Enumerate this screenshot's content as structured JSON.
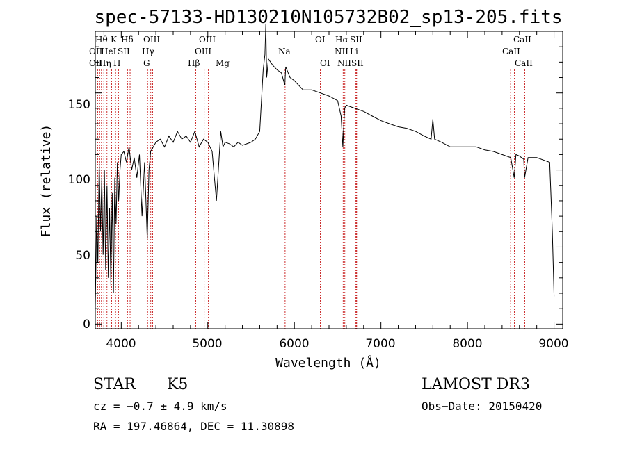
{
  "chart_data": {
    "type": "line",
    "title": "spec-57133-HD130210N105732B02_sp13-205.fits",
    "xlabel": "Wavelength (Å)",
    "ylabel": "Flux (relative)",
    "xlim": [
      3700,
      9100
    ],
    "ylim": [
      -3,
      190
    ],
    "xticks": [
      "4000",
      "5000",
      "6000",
      "7000",
      "8000",
      "9000"
    ],
    "yticks": [
      "0",
      "50",
      "100",
      "150"
    ],
    "grid": false,
    "series": [
      {
        "x": [
          3700,
          3715,
          3730,
          3745,
          3760,
          3775,
          3790,
          3805,
          3820,
          3835,
          3850,
          3865,
          3880,
          3895,
          3910,
          3925,
          3940,
          3955,
          3970,
          3985,
          4000,
          4030,
          4060,
          4090,
          4120,
          4150,
          4180,
          4210,
          4240,
          4270,
          4300,
          4320,
          4340,
          4370,
          4400,
          4450,
          4500,
          4550,
          4600,
          4650,
          4700,
          4750,
          4800,
          4850,
          4900,
          4950,
          5000,
          5050,
          5100,
          5150,
          5175,
          5200,
          5250,
          5300,
          5350,
          5400,
          5450,
          5500,
          5550,
          5600,
          5640,
          5660,
          5670,
          5680,
          5700,
          5750,
          5800,
          5850,
          5890,
          5900,
          5950,
          6000,
          6100,
          6200,
          6300,
          6400,
          6500,
          6540,
          6560,
          6580,
          6600,
          6700,
          6800,
          6900,
          7000,
          7100,
          7200,
          7300,
          7400,
          7500,
          7580,
          7600,
          7620,
          7700,
          7800,
          7900,
          8000,
          8100,
          8200,
          8300,
          8400,
          8500,
          8540,
          8560,
          8600,
          8650,
          8660,
          8700,
          8800,
          8900,
          8950,
          8980,
          9000
        ],
        "y": [
          10,
          70,
          40,
          105,
          60,
          95,
          45,
          100,
          35,
          90,
          30,
          75,
          25,
          85,
          20,
          95,
          65,
          105,
          80,
          100,
          110,
          112,
          105,
          115,
          100,
          108,
          95,
          110,
          70,
          105,
          55,
          100,
          112,
          115,
          118,
          120,
          115,
          122,
          118,
          125,
          120,
          122,
          118,
          125,
          115,
          120,
          118,
          112,
          80,
          125,
          115,
          118,
          117,
          115,
          118,
          116,
          117,
          118,
          120,
          125,
          165,
          175,
          195,
          160,
          172,
          168,
          165,
          163,
          155,
          167,
          160,
          158,
          152,
          152,
          150,
          148,
          145,
          135,
          115,
          140,
          142,
          140,
          138,
          135,
          132,
          130,
          128,
          127,
          125,
          122,
          120,
          133,
          120,
          118,
          115,
          115,
          115,
          115,
          113,
          112,
          110,
          108,
          95,
          110,
          109,
          107,
          95,
          108,
          108,
          106,
          105,
          60,
          18
        ]
      }
    ],
    "lines_row1": [
      "Hθ",
      "K",
      "Hδ",
      "OIII",
      "OIII",
      "OI",
      "Hα",
      "SII",
      "CaII"
    ],
    "lines_row2": [
      "OII",
      "HeI",
      "SII",
      "Hγ",
      "OIII",
      "Na",
      "NII",
      "Li",
      "CaII"
    ],
    "lines_row3": [
      "OII",
      "Hη",
      "H",
      "G",
      "Hβ",
      "Mg",
      "OI",
      "NII",
      "SII",
      "CaII"
    ],
    "line_positions": [
      3727,
      3750,
      3771,
      3798,
      3835,
      3889,
      3934,
      3968,
      4072,
      4102,
      4304,
      4341,
      4363,
      4861,
      4959,
      5007,
      5175,
      5893,
      6300,
      6364,
      6548,
      6563,
      6583,
      6708,
      6717,
      6731,
      8498,
      8542,
      8662
    ]
  },
  "info": {
    "object_type": "STAR",
    "subclass": "K5",
    "cz": "cz = −0.7 ± 4.9 km/s",
    "radec": "RA = 197.46864, DEC =  11.30898",
    "survey": "LAMOST DR3",
    "obs_date": "Obs−Date: 20150420"
  }
}
